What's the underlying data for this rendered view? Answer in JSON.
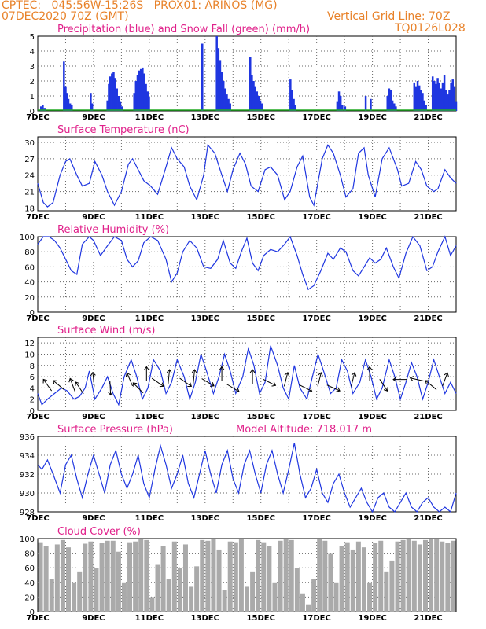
{
  "header": {
    "line1": "CPTEC:   045:56W-15:26S   PROX01: ARINOS (MG)",
    "line2": "07DEC2020 70Z (GMT)",
    "grid_line": "Vertical Grid Line: 70Z",
    "code": "TQ0126L028"
  },
  "colors": {
    "header": "#e8822a",
    "title": "#e0208a",
    "line": "#1f36e0",
    "snow": "#22aa22",
    "cloud": "#aaaaaa"
  },
  "x_ticks": [
    "7DEC",
    "9DEC",
    "11DEC",
    "13DEC",
    "15DEC",
    "17DEC",
    "19DEC",
    "21DEC"
  ],
  "chart_data": [
    {
      "type": "bar",
      "title": "Precipitation (blue) and Snow Fall (green) (mm/h)",
      "x_ticks": [
        "7DEC",
        "9DEC",
        "11DEC",
        "13DEC",
        "15DEC",
        "17DEC",
        "19DEC",
        "21DEC"
      ],
      "x_range_days": [
        7,
        22
      ],
      "ylim": [
        0,
        5
      ],
      "yticks": [
        0,
        1,
        2,
        3,
        4,
        5
      ],
      "series": [
        {
          "name": "Precipitation",
          "color": "#1f36e0",
          "x": [
            7.12,
            7.18,
            7.25,
            7.94,
            8.0,
            8.05,
            8.1,
            8.16,
            8.22,
            8.9,
            8.95,
            9.5,
            9.55,
            9.6,
            9.66,
            9.72,
            9.78,
            9.84,
            9.9,
            9.96,
            10.02,
            10.46,
            10.52,
            10.58,
            10.64,
            10.7,
            10.76,
            10.82,
            10.88,
            10.94,
            10.99,
            12.9,
            13.42,
            13.48,
            13.54,
            13.6,
            13.66,
            13.72,
            13.78,
            13.84,
            13.9,
            14.62,
            14.68,
            14.74,
            14.8,
            14.86,
            14.92,
            14.98,
            15.04,
            16.06,
            16.12,
            16.18,
            16.24,
            17.74,
            17.8,
            17.86,
            17.92,
            18.02,
            18.76,
            18.94,
            19.54,
            19.6,
            19.66,
            19.72,
            19.78,
            19.84,
            20.5,
            20.56,
            20.62,
            20.68,
            20.74,
            20.8,
            20.86,
            20.92,
            21.16,
            21.22,
            21.28,
            21.34,
            21.4,
            21.46,
            21.52,
            21.58,
            21.64,
            21.7,
            21.76,
            21.82,
            21.88,
            21.94,
            22.0
          ],
          "values": [
            0.3,
            0.4,
            0.2,
            3.3,
            1.6,
            1.2,
            0.8,
            0.5,
            0.4,
            1.2,
            0.5,
            0.7,
            1.8,
            2.3,
            2.5,
            2.6,
            2.2,
            1.5,
            1.0,
            0.6,
            0.3,
            1.2,
            2.0,
            2.4,
            2.7,
            2.8,
            2.9,
            2.5,
            1.8,
            1.3,
            0.9,
            4.5,
            5.0,
            4.2,
            3.4,
            2.6,
            2.0,
            1.5,
            1.1,
            0.8,
            0.5,
            3.6,
            2.4,
            2.0,
            1.6,
            1.3,
            1.0,
            0.7,
            0.5,
            2.1,
            1.4,
            0.8,
            0.4,
            0.6,
            1.3,
            1.0,
            0.4,
            0.3,
            1.0,
            0.8,
            1.0,
            1.5,
            1.4,
            0.7,
            0.5,
            0.3,
            1.9,
            1.6,
            2.0,
            1.7,
            1.4,
            1.2,
            0.7,
            0.4,
            2.3,
            2.0,
            1.8,
            2.2,
            1.9,
            1.5,
            1.9,
            2.4,
            1.4,
            1.1,
            1.4,
            1.9,
            2.1,
            1.6,
            0.6
          ]
        },
        {
          "name": "Snow Fall",
          "color": "#22aa22",
          "values": [
            0
          ]
        }
      ]
    },
    {
      "type": "line",
      "title": "Surface Temperature (nC)",
      "x_ticks": [
        "7DEC",
        "9DEC",
        "11DEC",
        "13DEC",
        "15DEC",
        "17DEC",
        "19DEC",
        "21DEC"
      ],
      "x_range_days": [
        7,
        22
      ],
      "ylim": [
        17.5,
        31
      ],
      "yticks": [
        18,
        21,
        24,
        27,
        30
      ],
      "series": [
        {
          "name": "Temperature",
          "color": "#1f36e0",
          "x": [
            7.0,
            7.2,
            7.35,
            7.55,
            7.8,
            8.0,
            8.15,
            8.4,
            8.6,
            8.85,
            9.05,
            9.3,
            9.5,
            9.75,
            10.0,
            10.25,
            10.4,
            10.6,
            10.8,
            11.05,
            11.3,
            11.6,
            11.8,
            12.0,
            12.25,
            12.45,
            12.7,
            12.95,
            13.1,
            13.35,
            13.6,
            13.8,
            14.0,
            14.25,
            14.45,
            14.65,
            14.9,
            15.15,
            15.35,
            15.6,
            15.85,
            16.05,
            16.3,
            16.5,
            16.75,
            16.9,
            17.2,
            17.4,
            17.6,
            17.85,
            18.05,
            18.3,
            18.5,
            18.7,
            18.85,
            19.1,
            19.35,
            19.6,
            19.9,
            20.05,
            20.3,
            20.55,
            20.75,
            20.95,
            21.2,
            21.35,
            21.6,
            21.8,
            22.0
          ],
          "values": [
            22.5,
            19,
            18.2,
            19,
            24,
            26.5,
            27,
            24,
            22,
            22.5,
            26.5,
            24,
            21,
            18.5,
            21,
            26,
            27,
            25,
            23,
            22,
            20.5,
            25.5,
            29,
            27,
            25.5,
            22,
            19.5,
            24,
            29.5,
            28,
            24,
            21,
            25,
            28,
            26,
            22,
            21,
            25,
            25.5,
            24,
            19.5,
            21,
            25.5,
            27.5,
            20,
            18.5,
            27,
            29.5,
            28,
            24,
            20,
            21.5,
            28,
            29,
            24,
            20,
            27,
            29,
            25,
            22,
            22.5,
            26.5,
            25,
            22,
            21,
            21.5,
            25,
            23.5,
            22.5
          ]
        }
      ]
    },
    {
      "type": "line",
      "title": "Relative Humidity (%)",
      "x_ticks": [
        "7DEC",
        "9DEC",
        "11DEC",
        "13DEC",
        "15DEC",
        "17DEC",
        "19DEC",
        "21DEC"
      ],
      "x_range_days": [
        7,
        22
      ],
      "ylim": [
        0,
        100
      ],
      "yticks": [
        0,
        20,
        40,
        60,
        80,
        100
      ],
      "series": [
        {
          "name": "Relative Humidity",
          "color": "#1f36e0",
          "x": [
            7.0,
            7.2,
            7.4,
            7.6,
            7.8,
            8.0,
            8.2,
            8.4,
            8.6,
            8.85,
            9.0,
            9.25,
            9.5,
            9.75,
            10.0,
            10.2,
            10.4,
            10.6,
            10.8,
            11.05,
            11.3,
            11.6,
            11.8,
            12.0,
            12.2,
            12.45,
            12.7,
            12.95,
            13.2,
            13.45,
            13.65,
            13.9,
            14.1,
            14.3,
            14.5,
            14.7,
            14.9,
            15.1,
            15.35,
            15.6,
            15.85,
            16.05,
            16.3,
            16.5,
            16.7,
            16.9,
            17.15,
            17.4,
            17.6,
            17.85,
            18.05,
            18.3,
            18.5,
            18.7,
            18.9,
            19.1,
            19.3,
            19.5,
            19.75,
            19.95,
            20.2,
            20.45,
            20.7,
            20.95,
            21.15,
            21.35,
            21.6,
            21.8,
            22.0
          ],
          "values": [
            90,
            100,
            100,
            95,
            85,
            70,
            55,
            50,
            90,
            100,
            95,
            75,
            88,
            100,
            95,
            70,
            60,
            68,
            92,
            100,
            95,
            70,
            40,
            52,
            80,
            95,
            85,
            60,
            58,
            70,
            95,
            65,
            58,
            80,
            98,
            65,
            55,
            75,
            83,
            80,
            90,
            100,
            75,
            50,
            30,
            35,
            55,
            78,
            70,
            85,
            80,
            55,
            48,
            60,
            72,
            65,
            70,
            85,
            60,
            45,
            78,
            100,
            88,
            55,
            60,
            80,
            100,
            75,
            88
          ]
        }
      ]
    },
    {
      "type": "line",
      "title": "Surface Wind (m/s)",
      "x_ticks": [
        "7DEC",
        "9DEC",
        "11DEC",
        "13DEC",
        "15DEC",
        "17DEC",
        "19DEC",
        "21DEC"
      ],
      "x_range_days": [
        7,
        22
      ],
      "ylim": [
        0,
        13
      ],
      "yticks": [
        0,
        2,
        4,
        6,
        8,
        10,
        12
      ],
      "series": [
        {
          "name": "Wind speed",
          "color": "#1f36e0",
          "x": [
            7.0,
            7.15,
            7.35,
            7.6,
            7.85,
            8.05,
            8.3,
            8.5,
            8.7,
            8.85,
            9.05,
            9.3,
            9.5,
            9.7,
            9.9,
            10.1,
            10.35,
            10.55,
            10.75,
            10.95,
            11.15,
            11.4,
            11.6,
            11.8,
            12.0,
            12.25,
            12.45,
            12.65,
            12.85,
            13.05,
            13.3,
            13.5,
            13.7,
            13.9,
            14.1,
            14.35,
            14.55,
            14.75,
            14.95,
            15.15,
            15.35,
            15.6,
            15.8,
            16.0,
            16.2,
            16.4,
            16.65,
            16.85,
            17.05,
            17.25,
            17.5,
            17.7,
            17.9,
            18.1,
            18.3,
            18.55,
            18.75,
            18.95,
            19.15,
            19.35,
            19.6,
            19.8,
            20.0,
            20.2,
            20.4,
            20.6,
            20.8,
            21.0,
            21.2,
            21.4,
            21.6,
            21.8,
            22.0
          ],
          "values": [
            3,
            1,
            2,
            3,
            4,
            3.5,
            2,
            2.5,
            4,
            7,
            2,
            4,
            6,
            3,
            1,
            6,
            9,
            6,
            2,
            4,
            9,
            7,
            3,
            5,
            9,
            6,
            2,
            5,
            10,
            7,
            3,
            6,
            10,
            7,
            3,
            6,
            11,
            8,
            3,
            5,
            11.5,
            8,
            4,
            2,
            8,
            4,
            2,
            6,
            10,
            7,
            3,
            4,
            9,
            7,
            3,
            5,
            9,
            6,
            2,
            4,
            9,
            6,
            2,
            5,
            8.5,
            6,
            2,
            5,
            9,
            6,
            3,
            5,
            3
          ]
        },
        {
          "name": "Wind direction",
          "arrows": true
        }
      ]
    },
    {
      "type": "line",
      "title": "Surface Pressure (hPa)",
      "annotation": "Model Altitude: 718.017 m",
      "x_ticks": [
        "7DEC",
        "9DEC",
        "11DEC",
        "13DEC",
        "15DEC",
        "17DEC",
        "19DEC",
        "21DEC"
      ],
      "x_range_days": [
        7,
        22
      ],
      "ylim": [
        928,
        936
      ],
      "yticks": [
        928,
        930,
        932,
        934,
        936
      ],
      "series": [
        {
          "name": "Pressure",
          "color": "#1f36e0",
          "x": [
            7.0,
            7.15,
            7.35,
            7.55,
            7.8,
            8.0,
            8.2,
            8.4,
            8.6,
            8.8,
            9.0,
            9.2,
            9.4,
            9.6,
            9.8,
            10.0,
            10.2,
            10.4,
            10.6,
            10.8,
            11.0,
            11.2,
            11.4,
            11.6,
            11.8,
            12.0,
            12.2,
            12.4,
            12.6,
            12.8,
            13.0,
            13.2,
            13.4,
            13.6,
            13.8,
            14.0,
            14.2,
            14.4,
            14.6,
            14.8,
            15.0,
            15.2,
            15.4,
            15.6,
            15.8,
            16.0,
            16.2,
            16.4,
            16.6,
            16.8,
            17.0,
            17.2,
            17.4,
            17.6,
            17.8,
            18.0,
            18.2,
            18.4,
            18.6,
            18.8,
            19.0,
            19.2,
            19.4,
            19.6,
            19.8,
            20.0,
            20.2,
            20.4,
            20.6,
            20.8,
            21.0,
            21.2,
            21.4,
            21.6,
            21.8,
            22.0
          ],
          "values": [
            933,
            932.5,
            933.5,
            932,
            930,
            933,
            934,
            931.5,
            929.5,
            932,
            934,
            932,
            930,
            933,
            934.5,
            932,
            930.5,
            932,
            934,
            931,
            929.5,
            932.5,
            935,
            933,
            930.5,
            932,
            934,
            931,
            929.5,
            932,
            934.5,
            932,
            930,
            933,
            934.5,
            931.5,
            930,
            933,
            934.5,
            932,
            930,
            933,
            934.5,
            932,
            930,
            932.5,
            935.3,
            932,
            929.5,
            930.5,
            932.5,
            930,
            929,
            931,
            932,
            930,
            928.5,
            929.5,
            930.5,
            929,
            928,
            929.5,
            930,
            928.5,
            928,
            929,
            930,
            928.5,
            928,
            929,
            929.5,
            928.5,
            928,
            928.5,
            928,
            930
          ]
        }
      ]
    },
    {
      "type": "bar",
      "title": "Cloud Cover (%)",
      "x_ticks": [
        "7DEC",
        "9DEC",
        "11DEC",
        "13DEC",
        "15DEC",
        "17DEC",
        "19DEC",
        "21DEC"
      ],
      "x_range_days": [
        7,
        22
      ],
      "ylim": [
        0,
        100
      ],
      "yticks": [
        0,
        20,
        40,
        60,
        80,
        100
      ],
      "series": [
        {
          "name": "Cloud Cover",
          "color": "#aaaaaa",
          "x": [
            7.1,
            7.3,
            7.5,
            7.7,
            7.9,
            8.1,
            8.3,
            8.5,
            8.7,
            8.9,
            9.1,
            9.3,
            9.5,
            9.7,
            9.9,
            10.1,
            10.3,
            10.5,
            10.7,
            10.9,
            11.1,
            11.3,
            11.5,
            11.7,
            11.9,
            12.1,
            12.3,
            12.5,
            12.7,
            12.9,
            13.1,
            13.3,
            13.5,
            13.7,
            13.9,
            14.1,
            14.3,
            14.5,
            14.7,
            14.9,
            15.1,
            15.3,
            15.5,
            15.7,
            15.9,
            16.1,
            16.3,
            16.5,
            16.7,
            16.9,
            17.1,
            17.3,
            17.5,
            17.7,
            17.9,
            18.1,
            18.3,
            18.5,
            18.7,
            18.9,
            19.1,
            19.3,
            19.5,
            19.7,
            19.9,
            20.1,
            20.3,
            20.5,
            20.7,
            20.9,
            21.1,
            21.3,
            21.5,
            21.7,
            21.9
          ],
          "values": [
            95,
            90,
            45,
            92,
            98,
            88,
            40,
            55,
            93,
            96,
            60,
            94,
            97,
            97,
            82,
            40,
            95,
            96,
            99,
            98,
            20,
            65,
            90,
            45,
            96,
            60,
            92,
            35,
            62,
            98,
            97,
            99,
            85,
            30,
            96,
            95,
            99,
            35,
            55,
            98,
            95,
            90,
            40,
            97,
            99,
            98,
            60,
            25,
            10,
            45,
            99,
            97,
            80,
            40,
            90,
            95,
            85,
            96,
            88,
            40,
            94,
            97,
            55,
            70,
            96,
            98,
            99,
            97,
            92,
            98,
            99,
            99,
            96,
            94,
            97
          ]
        }
      ]
    }
  ]
}
